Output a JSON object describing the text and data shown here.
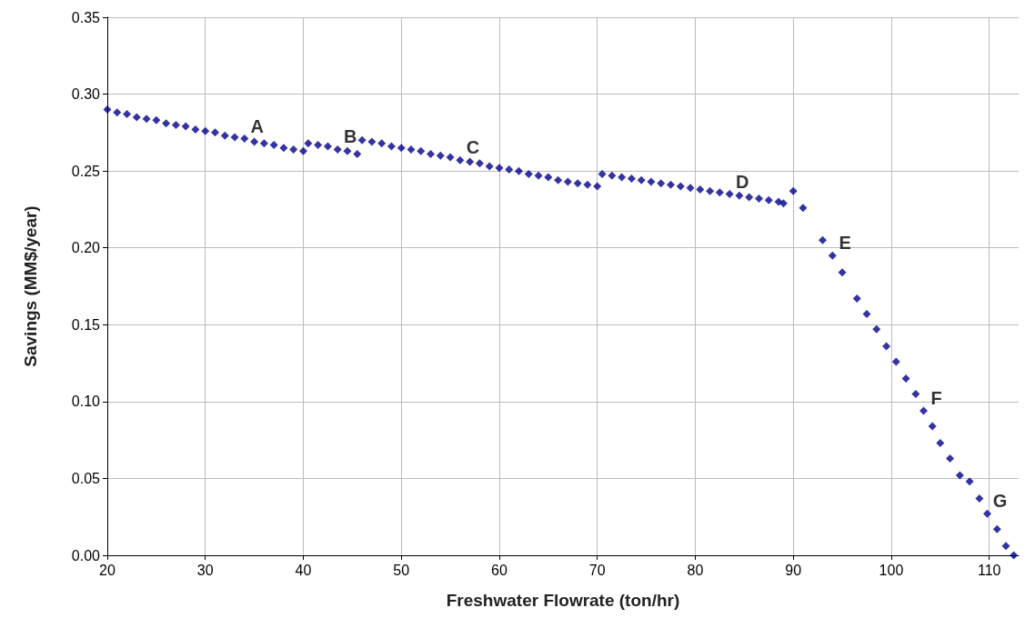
{
  "chart_data": {
    "type": "scatter",
    "xlabel": "Freshwater Flowrate (ton/hr)",
    "ylabel": "Savings (MM$/year)",
    "x": [
      20,
      21,
      22,
      23,
      24,
      25,
      26,
      27,
      28,
      29,
      30,
      31,
      32,
      33,
      34,
      35,
      36,
      37,
      38,
      39,
      40,
      40.5,
      41.5,
      42.5,
      43.5,
      44.5,
      45.5,
      46,
      47,
      48,
      49,
      50,
      51,
      52,
      53,
      54,
      55,
      56,
      57,
      58,
      59,
      60,
      61,
      62,
      63,
      64,
      65,
      66,
      67,
      68,
      69,
      70,
      70.5,
      71.5,
      72.5,
      73.5,
      74.5,
      75.5,
      76.5,
      77.5,
      78.5,
      79.5,
      80.5,
      81.5,
      82.5,
      83.5,
      84.5,
      85.5,
      86.5,
      87.5,
      88.5,
      89,
      90,
      91,
      93,
      94,
      95,
      96.5,
      97.5,
      98.5,
      99.5,
      100.5,
      101.5,
      102.5,
      103.3,
      104.2,
      105,
      106,
      107,
      108,
      109,
      109.8,
      110.8,
      111.7,
      112.5
    ],
    "values": [
      0.29,
      0.288,
      0.287,
      0.285,
      0.284,
      0.283,
      0.281,
      0.28,
      0.279,
      0.277,
      0.276,
      0.275,
      0.273,
      0.272,
      0.271,
      0.269,
      0.268,
      0.267,
      0.265,
      0.264,
      0.263,
      0.268,
      0.267,
      0.266,
      0.264,
      0.263,
      0.261,
      0.27,
      0.269,
      0.268,
      0.266,
      0.265,
      0.264,
      0.263,
      0.261,
      0.26,
      0.259,
      0.257,
      0.256,
      0.255,
      0.253,
      0.252,
      0.251,
      0.25,
      0.248,
      0.247,
      0.246,
      0.244,
      0.243,
      0.242,
      0.241,
      0.24,
      0.248,
      0.247,
      0.246,
      0.245,
      0.244,
      0.243,
      0.242,
      0.241,
      0.24,
      0.239,
      0.238,
      0.237,
      0.236,
      0.235,
      0.234,
      0.233,
      0.232,
      0.231,
      0.23,
      0.229,
      0.237,
      0.226,
      0.205,
      0.195,
      0.184,
      0.167,
      0.157,
      0.147,
      0.136,
      0.126,
      0.115,
      0.105,
      0.094,
      0.084,
      0.073,
      0.063,
      0.052,
      0.048,
      0.037,
      0.027,
      0.017,
      0.006,
      0.0
    ],
    "color": "#00008b",
    "marker": "diamond",
    "grid": true,
    "xlim": [
      20,
      113
    ],
    "xticks": [
      20,
      30,
      40,
      50,
      60,
      70,
      80,
      90,
      100,
      110
    ],
    "ylim": [
      0,
      0.35
    ],
    "yticks": [
      {
        "value": 0,
        "label": "0.00"
      },
      {
        "value": 0.05,
        "label": "0.05"
      },
      {
        "value": 0.1,
        "label": "0.10"
      },
      {
        "value": 0.15,
        "label": "0.15"
      },
      {
        "value": 0.2,
        "label": "0.20"
      },
      {
        "value": 0.25,
        "label": "0.25"
      },
      {
        "value": 0.3,
        "label": "0.30"
      },
      {
        "value": 0.35,
        "label": "0.35"
      }
    ],
    "annotations": [
      {
        "text": "A",
        "x": 34,
        "y": 0.271
      },
      {
        "text": "B",
        "x": 43.5,
        "y": 0.264
      },
      {
        "text": "C",
        "x": 56,
        "y": 0.257
      },
      {
        "text": "D",
        "x": 83.5,
        "y": 0.235
      },
      {
        "text": "E",
        "x": 94,
        "y": 0.195
      },
      {
        "text": "F",
        "x": 103.3,
        "y": 0.094
      },
      {
        "text": "G",
        "x": 109.8,
        "y": 0.027
      }
    ]
  }
}
